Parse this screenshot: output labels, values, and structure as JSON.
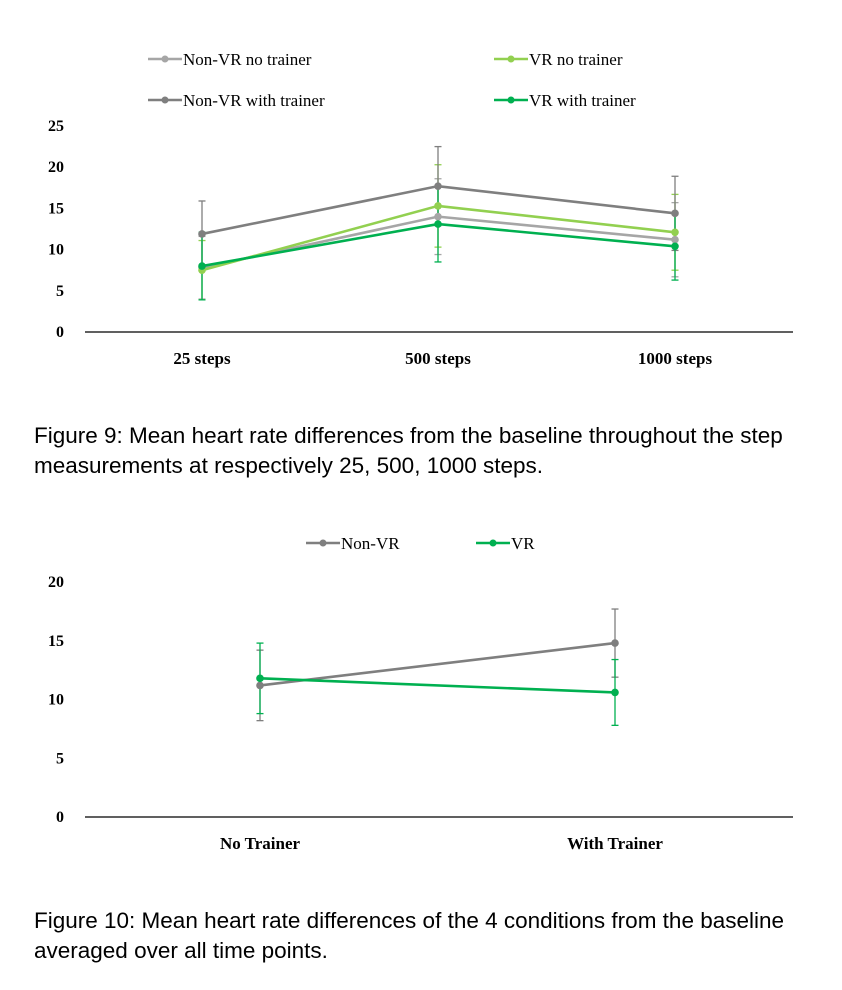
{
  "figures": [
    {
      "id": "fig9",
      "caption": "Figure 9: Mean heart rate differences from the baseline throughout the step measurements at respectively 25, 500, 1000 steps."
    },
    {
      "id": "fig10",
      "caption": "Figure 10: Mean heart rate differences of the 4 conditions from the baseline averaged over all time points."
    }
  ],
  "chart_data": [
    {
      "type": "line",
      "categories": [
        "25 steps",
        "500 steps",
        "1000 steps"
      ],
      "ylim": [
        0,
        25
      ],
      "yticks": [
        0,
        5,
        10,
        15,
        20,
        25
      ],
      "grid": false,
      "legend": "top",
      "error_bars": true,
      "series": [
        {
          "name": "Non-VR no trainer",
          "color": "#a6a6a6",
          "values": [
            7.8,
            14.0,
            11.2
          ],
          "errors": [
            3.8,
            4.6,
            4.5
          ]
        },
        {
          "name": "VR no trainer",
          "color": "#92d050",
          "values": [
            7.5,
            15.3,
            12.1
          ],
          "errors": [
            3.6,
            5.0,
            4.6
          ]
        },
        {
          "name": "Non-VR with trainer",
          "color": "#7f7f7f",
          "values": [
            11.9,
            17.7,
            14.4
          ],
          "errors": [
            4.0,
            4.8,
            4.5
          ]
        },
        {
          "name": "VR with trainer",
          "color": "#00b050",
          "values": [
            8.0,
            13.1,
            10.4
          ],
          "errors": [
            4.1,
            4.6,
            4.1
          ]
        }
      ]
    },
    {
      "type": "line",
      "categories": [
        "No Trainer",
        "With Trainer"
      ],
      "ylim": [
        0,
        20
      ],
      "yticks": [
        0,
        5,
        10,
        15,
        20
      ],
      "grid": false,
      "legend": "top",
      "error_bars": true,
      "series": [
        {
          "name": "Non-VR",
          "color": "#7f7f7f",
          "values": [
            11.2,
            14.8
          ],
          "errors": [
            3.0,
            2.9
          ]
        },
        {
          "name": "VR",
          "color": "#00b050",
          "values": [
            11.8,
            10.6
          ],
          "errors": [
            3.0,
            2.8
          ]
        }
      ]
    }
  ]
}
